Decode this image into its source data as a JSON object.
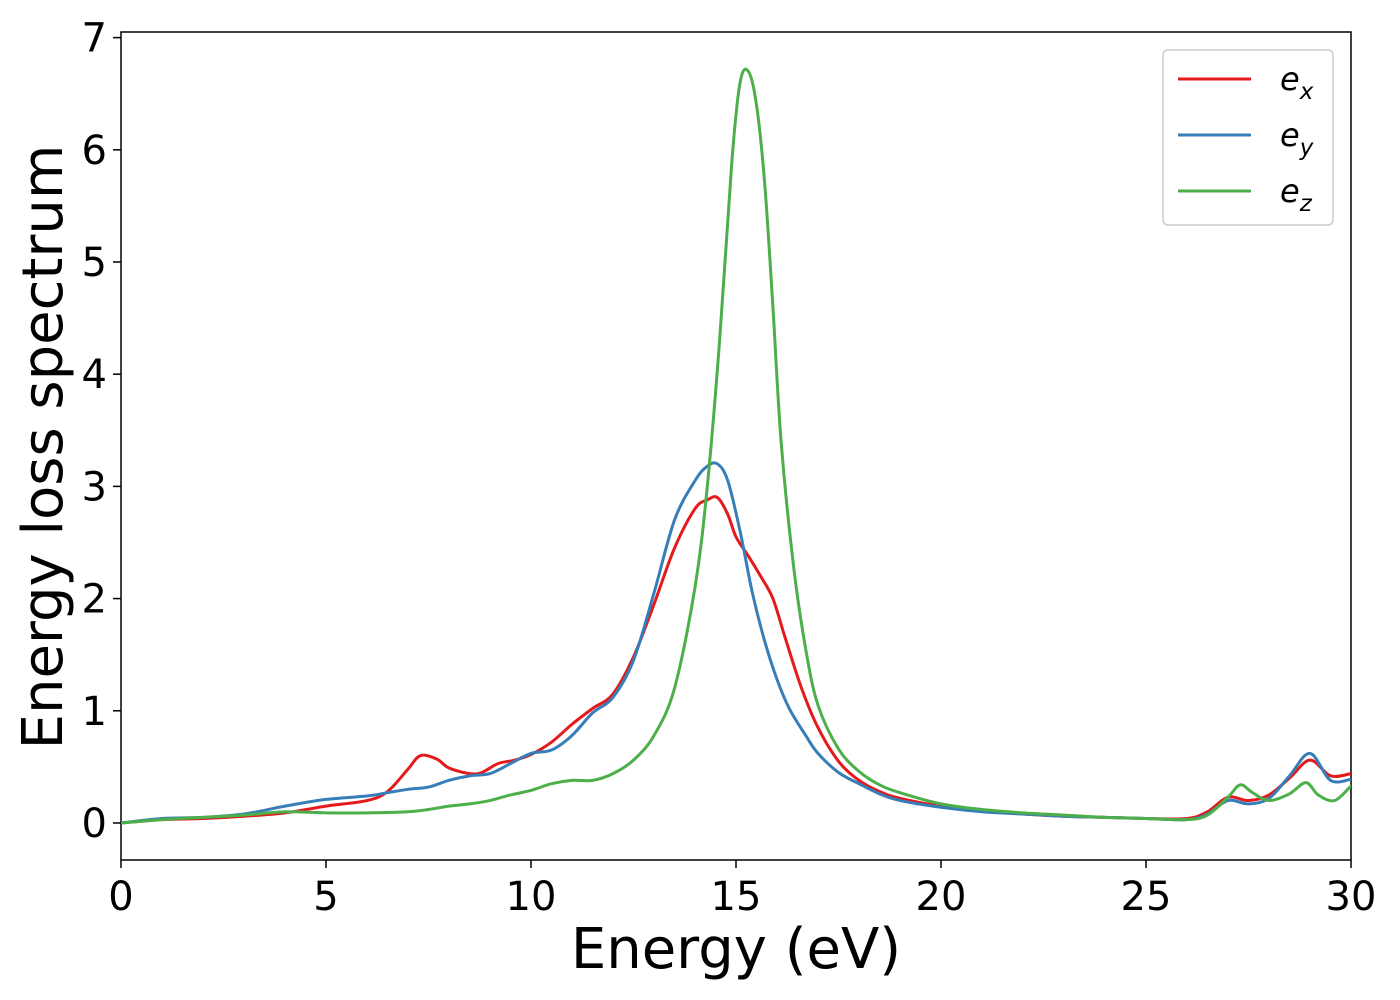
{
  "chart_data": {
    "type": "line",
    "xlabel": "Energy (eV)",
    "ylabel": "Energy loss spectrum",
    "xlim": [
      0,
      30
    ],
    "ylim": [
      -0.33,
      7.05
    ],
    "xticks": [
      0,
      5,
      10,
      15,
      20,
      25,
      30
    ],
    "yticks": [
      0,
      1,
      2,
      3,
      4,
      5,
      6,
      7
    ],
    "grid": false,
    "legend_position": "top-right",
    "series": [
      {
        "name": "e",
        "subscript": "x",
        "color": "#e41a1c",
        "x": [
          0,
          1,
          2,
          3,
          4,
          5,
          6,
          6.5,
          7,
          7.3,
          7.7,
          8,
          8.5,
          8.8,
          9.2,
          9.6,
          10,
          10.5,
          11,
          11.5,
          12,
          12.5,
          13,
          13.5,
          14,
          14.3,
          14.55,
          14.8,
          15,
          15.3,
          15.6,
          15.9,
          16.2,
          16.6,
          17,
          17.5,
          18,
          18.5,
          19,
          20,
          21,
          22,
          23,
          24,
          25,
          26,
          26.5,
          27,
          27.5,
          28,
          28.5,
          29,
          29.5,
          30
        ],
        "y": [
          0,
          0.03,
          0.04,
          0.06,
          0.09,
          0.15,
          0.2,
          0.28,
          0.48,
          0.6,
          0.57,
          0.49,
          0.44,
          0.45,
          0.53,
          0.56,
          0.61,
          0.72,
          0.88,
          1.02,
          1.15,
          1.48,
          1.95,
          2.45,
          2.8,
          2.88,
          2.9,
          2.75,
          2.55,
          2.38,
          2.2,
          2.0,
          1.65,
          1.2,
          0.85,
          0.55,
          0.38,
          0.28,
          0.22,
          0.15,
          0.11,
          0.08,
          0.06,
          0.05,
          0.04,
          0.04,
          0.1,
          0.23,
          0.2,
          0.25,
          0.4,
          0.56,
          0.42,
          0.44
        ]
      },
      {
        "name": "e",
        "subscript": "y",
        "color": "#377eb8",
        "x": [
          0,
          1,
          2,
          3,
          4,
          5,
          6,
          6.5,
          7,
          7.5,
          8,
          8.5,
          9,
          9.5,
          10,
          10.5,
          11,
          11.5,
          12,
          12.5,
          13,
          13.5,
          14,
          14.3,
          14.55,
          14.8,
          15.1,
          15.4,
          15.7,
          16,
          16.3,
          16.7,
          17,
          17.5,
          18,
          18.5,
          19,
          20,
          21,
          22,
          23,
          24,
          25,
          26,
          26.5,
          27,
          27.5,
          28,
          28.5,
          29,
          29.5,
          30
        ],
        "y": [
          0,
          0.04,
          0.05,
          0.08,
          0.15,
          0.21,
          0.24,
          0.27,
          0.3,
          0.32,
          0.38,
          0.42,
          0.44,
          0.53,
          0.62,
          0.65,
          0.78,
          0.98,
          1.12,
          1.45,
          2.05,
          2.7,
          3.05,
          3.18,
          3.2,
          3.05,
          2.6,
          2.05,
          1.62,
          1.28,
          1.02,
          0.78,
          0.62,
          0.45,
          0.35,
          0.26,
          0.2,
          0.14,
          0.1,
          0.08,
          0.06,
          0.05,
          0.04,
          0.03,
          0.08,
          0.2,
          0.17,
          0.22,
          0.42,
          0.62,
          0.38,
          0.39
        ]
      },
      {
        "name": "e",
        "subscript": "z",
        "color": "#4daf4a",
        "x": [
          0,
          1,
          2,
          3,
          4,
          5,
          6,
          7,
          7.5,
          8,
          8.5,
          9,
          9.5,
          10,
          10.5,
          11,
          11.5,
          12,
          12.5,
          13,
          13.5,
          14,
          14.3,
          14.6,
          14.9,
          15.1,
          15.3,
          15.5,
          15.7,
          15.9,
          16.1,
          16.4,
          16.7,
          17,
          17.5,
          18,
          18.5,
          19,
          20,
          21,
          22,
          23,
          24,
          25,
          26,
          26.5,
          27,
          27.3,
          27.6,
          28,
          28.5,
          28.9,
          29.2,
          29.6,
          30
        ],
        "y": [
          0,
          0.03,
          0.05,
          0.07,
          0.1,
          0.09,
          0.09,
          0.1,
          0.12,
          0.15,
          0.17,
          0.2,
          0.25,
          0.29,
          0.35,
          0.38,
          0.38,
          0.44,
          0.56,
          0.78,
          1.2,
          2.1,
          3.0,
          4.3,
          5.9,
          6.6,
          6.7,
          6.4,
          5.7,
          4.6,
          3.4,
          2.3,
          1.55,
          1.05,
          0.66,
          0.46,
          0.34,
          0.27,
          0.17,
          0.12,
          0.09,
          0.07,
          0.05,
          0.04,
          0.03,
          0.07,
          0.23,
          0.34,
          0.27,
          0.2,
          0.26,
          0.36,
          0.25,
          0.2,
          0.33
        ]
      }
    ]
  }
}
